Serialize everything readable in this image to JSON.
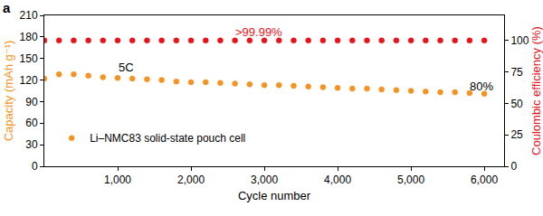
{
  "chart_data": {
    "type": "scatter",
    "title": "a",
    "x_label": "Cycle number",
    "y_label": "Capacity (mAh g⁻¹)",
    "y2_label": "Coulombic efficiency (%)",
    "x": [
      0,
      200,
      400,
      600,
      800,
      1000,
      1200,
      1400,
      1600,
      1800,
      2000,
      2200,
      2400,
      2600,
      2800,
      3000,
      3200,
      3400,
      3600,
      3800,
      4000,
      4200,
      4400,
      4600,
      4800,
      5000,
      5200,
      5400,
      5600,
      5800,
      6000
    ],
    "series": [
      {
        "name": "Li–NMC83 solid-state pouch cell",
        "color": "#f39422",
        "marker": "circle",
        "values": [
          122,
          128,
          128,
          126,
          124,
          123,
          122,
          121,
          120,
          118,
          117,
          117,
          116,
          115,
          114,
          113,
          113,
          112,
          111,
          110,
          109,
          108,
          108,
          107,
          106,
          105,
          104,
          103,
          103,
          102,
          101
        ]
      },
      {
        "color": "#e8141c",
        "marker": "circle",
        "axis": "y2",
        "values": [
          99.99,
          99.99,
          99.99,
          99.99,
          99.99,
          99.99,
          99.99,
          99.99,
          99.99,
          99.99,
          99.99,
          99.99,
          99.99,
          99.99,
          99.99,
          99.99,
          99.99,
          99.99,
          99.99,
          99.99,
          99.99,
          99.99,
          99.99,
          99.99,
          99.99,
          99.99,
          99.99,
          99.99,
          99.99,
          99.99,
          99.99
        ]
      }
    ],
    "xlim": [
      0,
      6270
    ],
    "xticks": [
      {
        "value": 1000,
        "label": "1,000"
      },
      {
        "value": 2000,
        "label": "2,000"
      },
      {
        "value": 3000,
        "label": "3,000"
      },
      {
        "value": 4000,
        "label": "4,000"
      },
      {
        "value": 5000,
        "label": "5,000"
      },
      {
        "value": 6000,
        "label": "6,000"
      }
    ],
    "ylim": [
      0,
      210
    ],
    "yticks": [
      0,
      30,
      60,
      90,
      120,
      150,
      180,
      210
    ],
    "y2lim": [
      0,
      120
    ],
    "y2ticks": [
      0,
      25,
      50,
      75,
      100
    ],
    "grid": false,
    "legend": "bottom left",
    "annotations": [
      {
        "text": ">99.99%",
        "x": 2925,
        "y": 187,
        "color": "#e8141c"
      },
      {
        "text": "5C",
        "x": 1120,
        "y": 138,
        "color": "#000000"
      },
      {
        "text": "80%",
        "x": 5960,
        "y": 111,
        "color": "#000000"
      }
    ]
  }
}
